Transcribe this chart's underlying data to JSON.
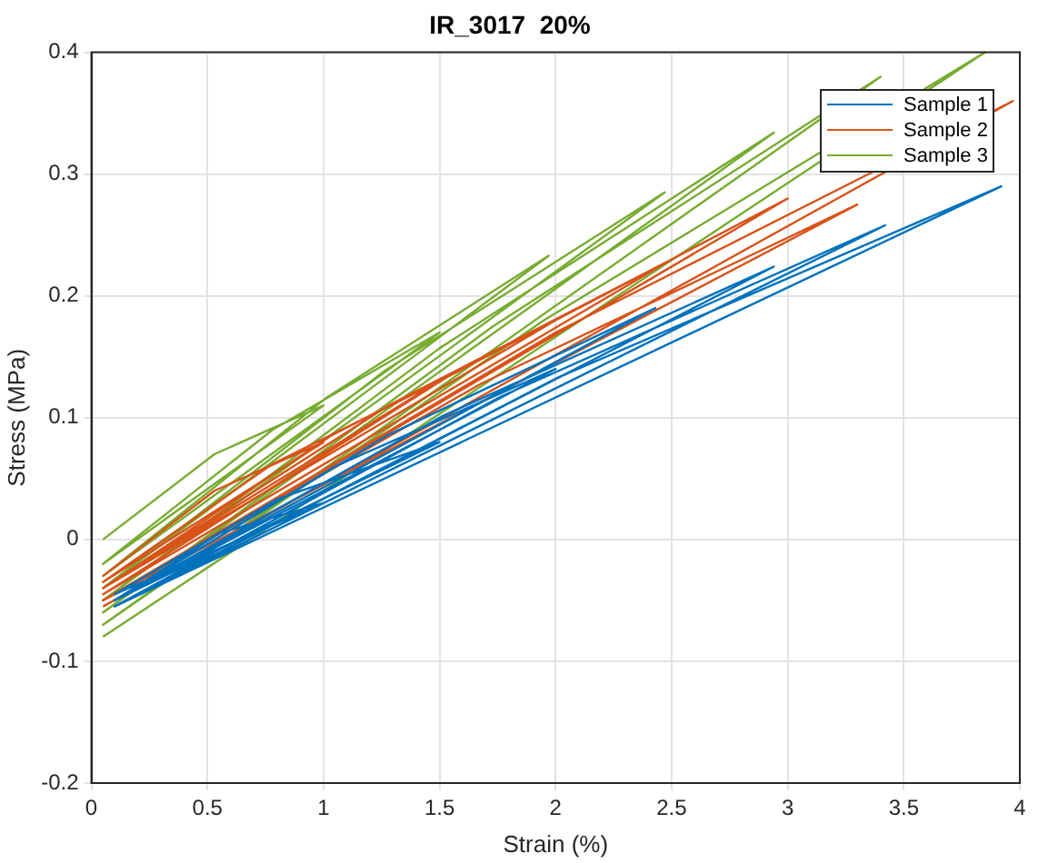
{
  "chart_data": {
    "type": "line",
    "title": "IR_3017  20%",
    "xlabel": "Strain (%)",
    "ylabel": "Stress (MPa)",
    "xlim": [
      0,
      4
    ],
    "xticks": [
      0,
      0.5,
      1,
      1.5,
      2,
      2.5,
      3,
      3.5,
      4
    ],
    "ylim": [
      -0.2,
      0.4
    ],
    "yticks": [
      -0.2,
      -0.1,
      0,
      0.1,
      0.2,
      0.3,
      0.4
    ],
    "grid": true,
    "legend": "top right",
    "marker": "none",
    "line_style": "solid",
    "series": [
      {
        "name": "Sample 1",
        "color": "#0072bd",
        "x": [
          0.1,
          0.55,
          1,
          0.1,
          0.8,
          1.5,
          0.1,
          1.05,
          2,
          0.1,
          1.27,
          2.43,
          0.1,
          1.52,
          2.94,
          0.1,
          1.76,
          3.42,
          0.1,
          2.01,
          3.92,
          0.1
        ],
        "values": [
          -0.05,
          0.005,
          0.03,
          -0.045,
          0.033,
          0.08,
          -0.05,
          0.06,
          0.14,
          -0.05,
          0.085,
          0.19,
          -0.05,
          0.102,
          0.224,
          -0.055,
          0.117,
          0.258,
          -0.055,
          0.133,
          0.29,
          -0.055
        ]
      },
      {
        "name": "Sample 2",
        "color": "#d95319",
        "x": [
          0.05,
          0.53,
          1,
          0.05,
          0.78,
          1.5,
          0.05,
          1.03,
          2,
          0.05,
          1.28,
          2.5,
          0.05,
          1.53,
          3,
          0.05,
          1.68,
          3.3,
          0.05,
          2,
          3.97,
          0.05
        ],
        "values": [
          -0.03,
          0.04,
          0.08,
          -0.035,
          0.062,
          0.13,
          -0.04,
          0.085,
          0.18,
          -0.04,
          0.11,
          0.23,
          -0.045,
          0.133,
          0.28,
          -0.05,
          0.128,
          0.275,
          -0.05,
          0.17,
          0.36,
          -0.055
        ]
      },
      {
        "name": "Sample 3",
        "color": "#77ac30",
        "x": [
          0.05,
          0.53,
          1,
          0.05,
          0.78,
          1.5,
          0.05,
          1.01,
          1.97,
          0.05,
          1.26,
          2.47,
          0.05,
          1.5,
          2.94,
          0.05,
          1.73,
          3.4,
          0.05,
          1.95,
          3.85,
          0.05
        ],
        "values": [
          0,
          0.07,
          0.11,
          -0.02,
          0.09,
          0.17,
          -0.03,
          0.116,
          0.233,
          -0.04,
          0.138,
          0.285,
          -0.05,
          0.157,
          0.334,
          -0.06,
          0.175,
          0.38,
          -0.07,
          0.18,
          0.4,
          -0.08
        ]
      }
    ]
  }
}
